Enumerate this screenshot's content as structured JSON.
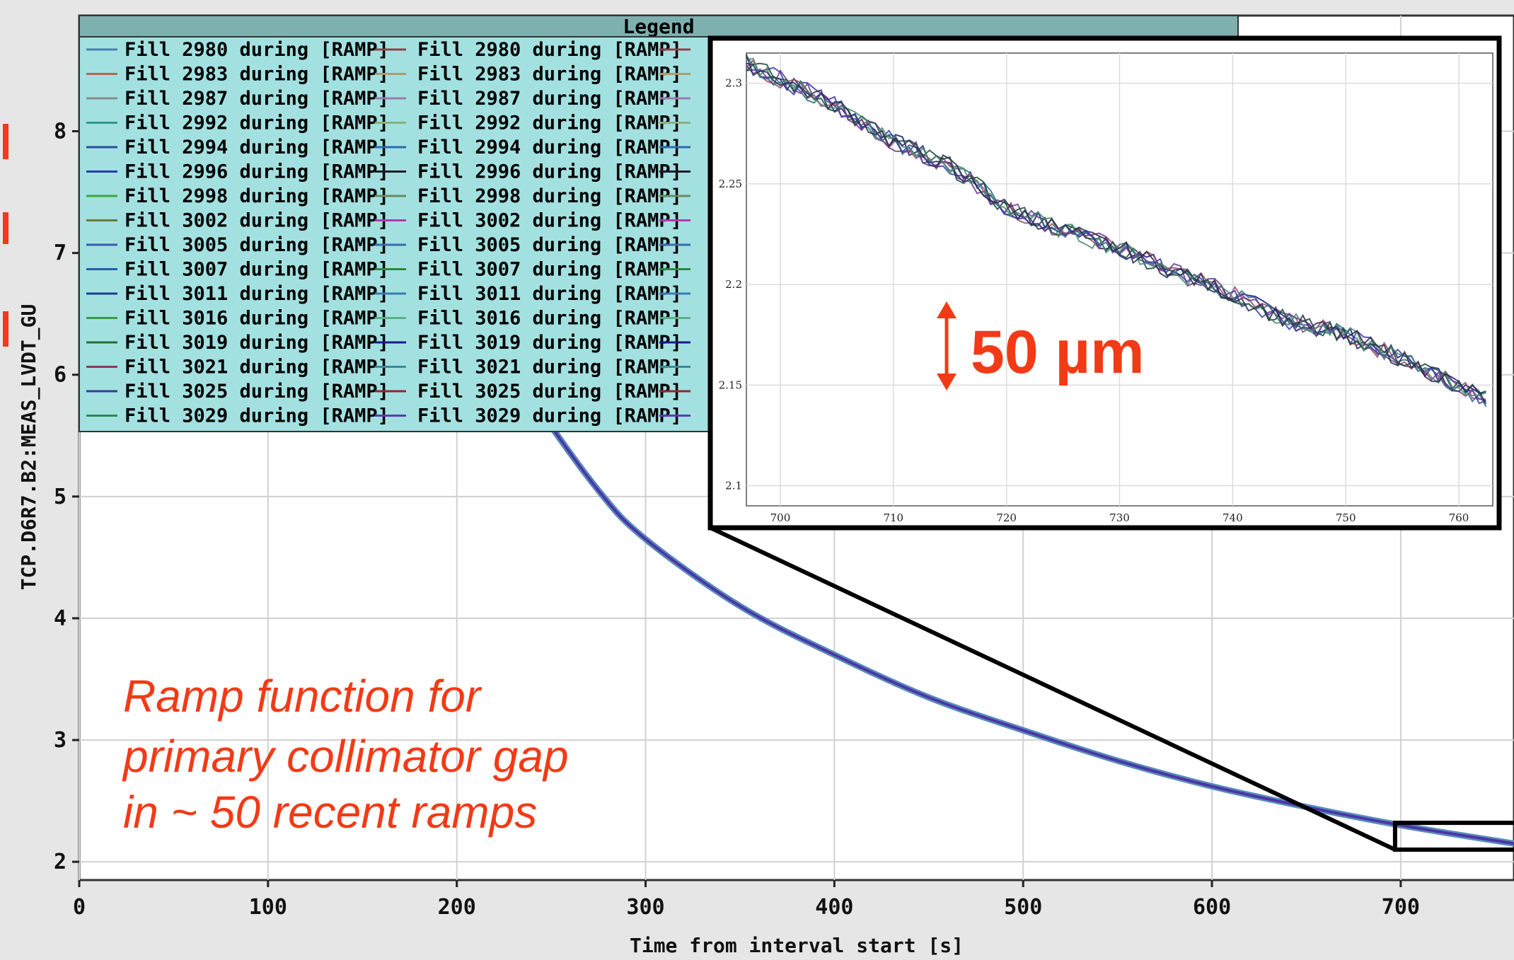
{
  "chart_data": {
    "type": "line",
    "xlabel": "Time from interval start [s]",
    "ylabel": "TCP.D6R7.B2:MEAS_LVDT_GU",
    "xlim": [
      0,
      760
    ],
    "ylim": [
      1.85,
      8.95
    ],
    "x_ticks": [
      "0",
      "100",
      "200",
      "300",
      "400",
      "500",
      "600",
      "700"
    ],
    "y_ticks": [
      "2",
      "3",
      "4",
      "5",
      "6",
      "7",
      "8"
    ],
    "grid": true,
    "legend": {
      "title": "Legend",
      "placement": "top-left",
      "columns": [
        [
          {
            "label": "Fill 2980 during [RAMP]",
            "color": "#4a7fb5"
          },
          {
            "label": "Fill 2983 during [RAMP]",
            "color": "#b06a4a"
          },
          {
            "label": "Fill 2987 during [RAMP]",
            "color": "#8a8a8a"
          },
          {
            "label": "Fill 2992 during [RAMP]",
            "color": "#2a9a8a"
          },
          {
            "label": "Fill 2994 during [RAMP]",
            "color": "#2a4aa0"
          },
          {
            "label": "Fill 2996 during [RAMP]",
            "color": "#2a3ab0"
          },
          {
            "label": "Fill 2998 during [RAMP]",
            "color": "#3aa83a"
          },
          {
            "label": "Fill 3002 during [RAMP]",
            "color": "#6a7a3a"
          },
          {
            "label": "Fill 3005 during [RAMP]",
            "color": "#3a5ab0"
          },
          {
            "label": "Fill 3007 during [RAMP]",
            "color": "#2a5aa8"
          },
          {
            "label": "Fill 3011 during [RAMP]",
            "color": "#1a3a8a"
          },
          {
            "label": "Fill 3016 during [RAMP]",
            "color": "#3a9a4a"
          },
          {
            "label": "Fill 3019 during [RAMP]",
            "color": "#2a6a3a"
          },
          {
            "label": "Fill 3021 during [RAMP]",
            "color": "#8a3a5a"
          },
          {
            "label": "Fill 3025 during [RAMP]",
            "color": "#3a3a9a"
          },
          {
            "label": "Fill 3029 during [RAMP]",
            "color": "#2a8a4a"
          }
        ],
        [
          {
            "label": "Fill 2980 during [RAMP]",
            "color": "#9a3a4a"
          },
          {
            "label": "Fill 2983 during [RAMP]",
            "color": "#b09a6a"
          },
          {
            "label": "Fill 2987 during [RAMP]",
            "color": "#9a7ab0"
          },
          {
            "label": "Fill 2992 during [RAMP]",
            "color": "#8ab07a"
          },
          {
            "label": "Fill 2994 during [RAMP]",
            "color": "#2a6ab0"
          },
          {
            "label": "Fill 2996 during [RAMP]",
            "color": "#1a1a2a"
          },
          {
            "label": "Fill 2998 during [RAMP]",
            "color": "#6a8a5a"
          },
          {
            "label": "Fill 3002 during [RAMP]",
            "color": "#b03ab0"
          },
          {
            "label": "Fill 3005 during [RAMP]",
            "color": "#3a6ab0"
          },
          {
            "label": "Fill 3007 during [RAMP]",
            "color": "#2a8a3a"
          },
          {
            "label": "Fill 3011 during [RAMP]",
            "color": "#3a7ab0"
          },
          {
            "label": "Fill 3016 during [RAMP]",
            "color": "#5ab08a"
          },
          {
            "label": "Fill 3019 during [RAMP]",
            "color": "#1a1a8a"
          },
          {
            "label": "Fill 3021 during [RAMP]",
            "color": "#3a8a9a"
          },
          {
            "label": "Fill 3025 during [RAMP]",
            "color": "#8a2a2a"
          },
          {
            "label": "Fill 3029 during [RAMP]",
            "color": "#5a3ab0"
          }
        ]
      ]
    },
    "series_color": "#4b35a8",
    "curve": [
      {
        "x": 0,
        "y": 8.6
      },
      {
        "x": 50,
        "y": 8.4
      },
      {
        "x": 100,
        "y": 8.1
      },
      {
        "x": 150,
        "y": 7.6
      },
      {
        "x": 200,
        "y": 6.75
      },
      {
        "x": 240,
        "y": 5.8
      },
      {
        "x": 275,
        "y": 5.05
      },
      {
        "x": 300,
        "y": 4.65
      },
      {
        "x": 350,
        "y": 4.1
      },
      {
        "x": 400,
        "y": 3.7
      },
      {
        "x": 450,
        "y": 3.35
      },
      {
        "x": 500,
        "y": 3.08
      },
      {
        "x": 550,
        "y": 2.83
      },
      {
        "x": 600,
        "y": 2.62
      },
      {
        "x": 650,
        "y": 2.45
      },
      {
        "x": 700,
        "y": 2.3
      },
      {
        "x": 760,
        "y": 2.15
      }
    ],
    "zoom_box": {
      "x": [
        697,
        762
      ],
      "y": [
        2.1,
        2.32
      ]
    },
    "inset": {
      "xlim": [
        697,
        763
      ],
      "ylim": [
        2.09,
        2.315
      ],
      "x_ticks": [
        "700",
        "710",
        "720",
        "730",
        "740",
        "750",
        "760"
      ],
      "y_ticks": [
        "2.1",
        "2.15",
        "2.2",
        "2.25",
        "2.3"
      ],
      "curve": [
        {
          "x": 697,
          "y": 2.31
        },
        {
          "x": 700,
          "y": 2.302
        },
        {
          "x": 705,
          "y": 2.289
        },
        {
          "x": 710,
          "y": 2.271
        },
        {
          "x": 715,
          "y": 2.259
        },
        {
          "x": 720,
          "y": 2.238
        },
        {
          "x": 725,
          "y": 2.227
        },
        {
          "x": 730,
          "y": 2.218
        },
        {
          "x": 735,
          "y": 2.206
        },
        {
          "x": 740,
          "y": 2.195
        },
        {
          "x": 745,
          "y": 2.182
        },
        {
          "x": 750,
          "y": 2.175
        },
        {
          "x": 755,
          "y": 2.163
        },
        {
          "x": 760,
          "y": 2.15
        },
        {
          "x": 763,
          "y": 2.141
        }
      ],
      "line_colors": [
        "#1a1a7a",
        "#9a4a6a",
        "#2a6a8a",
        "#3a3ab0",
        "#6a3a8a",
        "#1a4a3a",
        "#4a8a6a",
        "#2a2a4a"
      ]
    },
    "annotations": {
      "range_label": "50 µm",
      "caption": [
        "Ramp function for",
        "primary collimator gap",
        "in ~ 50 recent ramps"
      ]
    }
  }
}
